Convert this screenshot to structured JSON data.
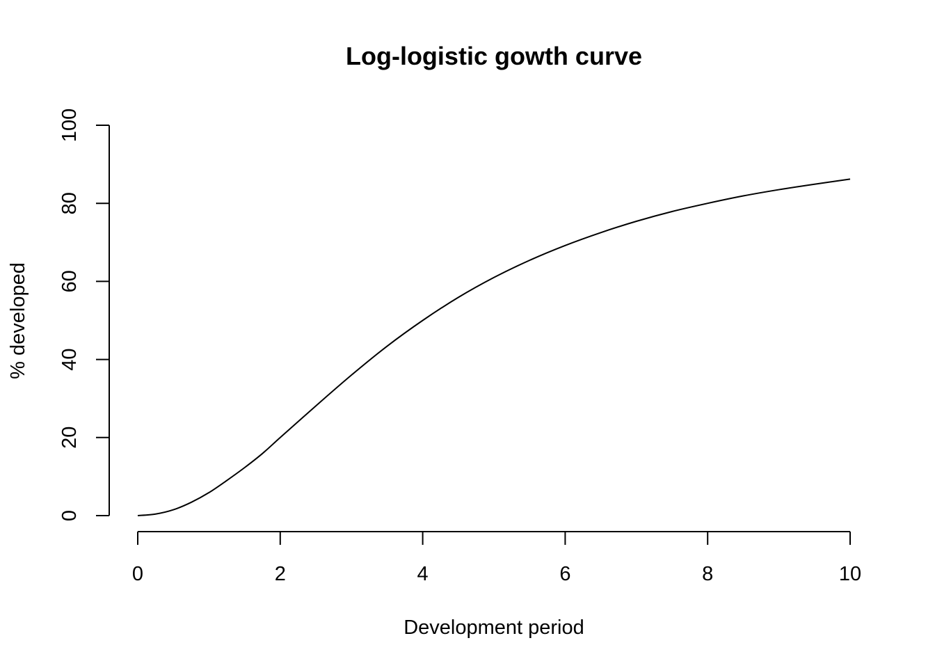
{
  "chart_data": {
    "type": "line",
    "title": "Log-logistic gowth curve",
    "xlabel": "Development period",
    "ylabel": "% developed",
    "xlim": [
      0,
      10
    ],
    "ylim": [
      0,
      100
    ],
    "x_ticks": [
      0,
      2,
      4,
      6,
      8,
      10
    ],
    "y_ticks": [
      0,
      20,
      40,
      60,
      80,
      100
    ],
    "grid": false,
    "legend": "none",
    "series": [
      {
        "x": [
          0,
          0.25,
          0.5,
          0.75,
          1,
          1.25,
          1.5,
          1.75,
          2,
          2.5,
          3,
          3.5,
          4,
          4.5,
          5,
          5.5,
          6,
          6.5,
          7,
          7.5,
          8,
          8.5,
          9,
          9.5,
          10
        ],
        "y": [
          0,
          0.4,
          1.5,
          3.4,
          5.9,
          9.0,
          12.3,
          15.9,
          20.0,
          28.1,
          36.0,
          43.4,
          50.0,
          55.9,
          61.0,
          65.4,
          69.2,
          72.5,
          75.4,
          77.9,
          80.0,
          81.9,
          83.5,
          84.9,
          86.2
        ]
      }
    ]
  }
}
